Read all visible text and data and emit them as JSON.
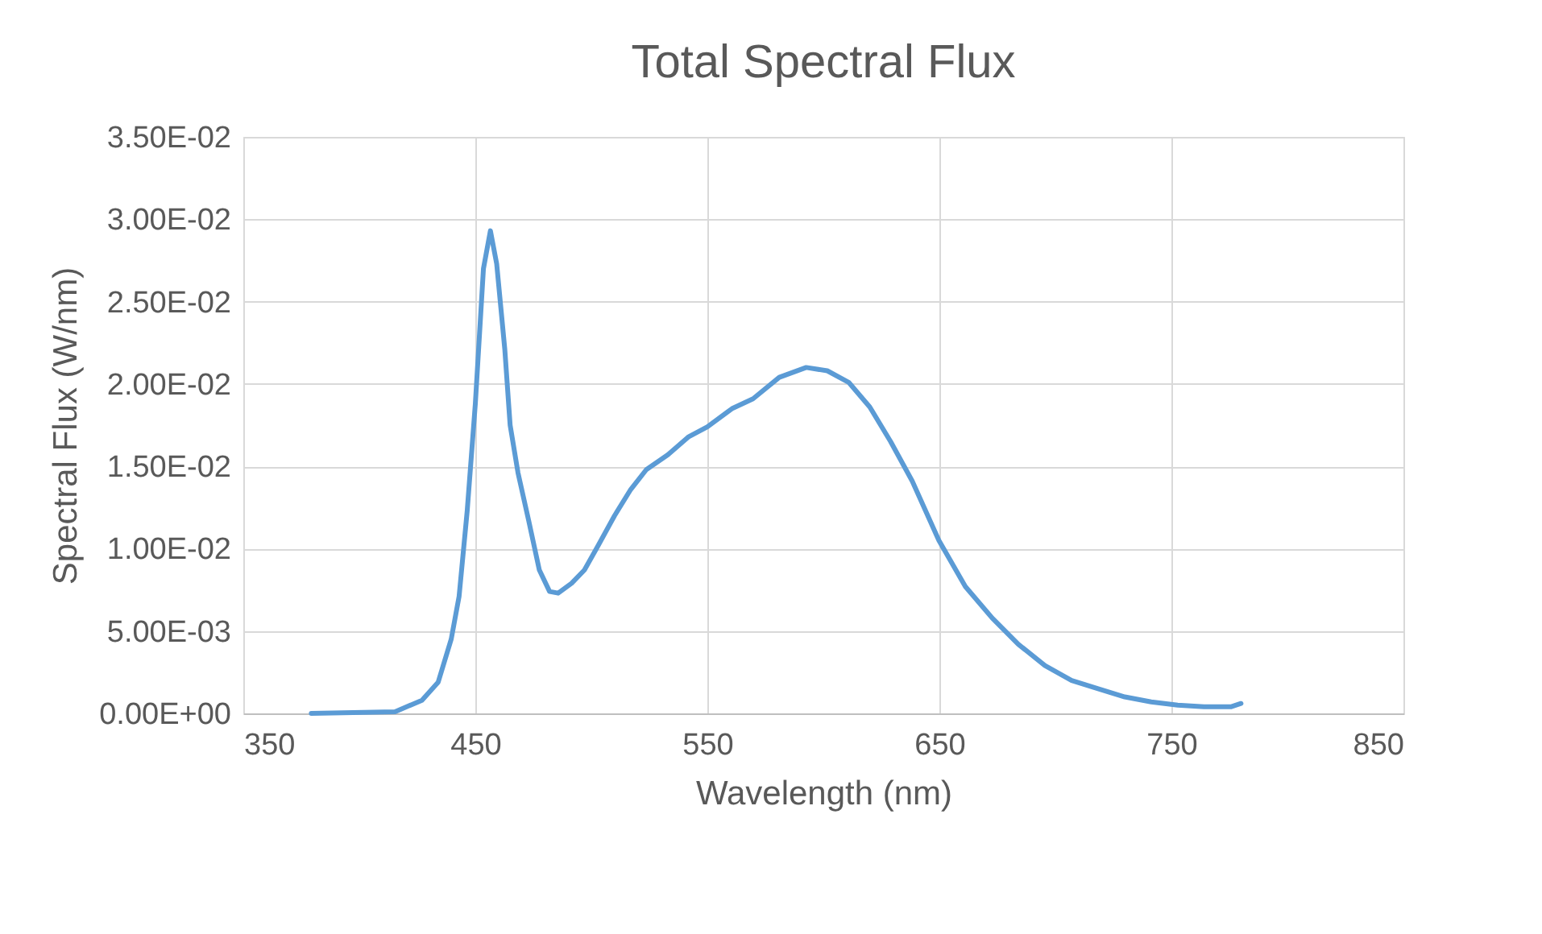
{
  "chart_data": {
    "type": "line",
    "title": "Total Spectral Flux",
    "xlabel": "Wavelength (nm)",
    "ylabel": "Spectral Flux (W/nm)",
    "xlim": [
      350,
      850
    ],
    "xticks": [
      350,
      450,
      550,
      650,
      750,
      850
    ],
    "ylim": [
      0,
      0.035
    ],
    "yticks": [
      {
        "value": 0,
        "label": "0.00E+00"
      },
      {
        "value": 0.005,
        "label": "5.00E-03"
      },
      {
        "value": 0.01,
        "label": "1.00E-02"
      },
      {
        "value": 0.015,
        "label": "1.50E-02"
      },
      {
        "value": 0.02,
        "label": "2.00E-02"
      },
      {
        "value": 0.025,
        "label": "2.50E-02"
      },
      {
        "value": 0.03,
        "label": "3.00E-02"
      },
      {
        "value": 0.035,
        "label": "3.50E-02"
      }
    ],
    "grid": true,
    "legend": false,
    "marker": "none",
    "line_style": "solid",
    "series": [
      {
        "color": "#5b9bd5",
        "x": [
          379.3,
          415.4,
          427,
          434,
          439.6,
          443,
          446.5,
          450,
          453.5,
          456.5,
          459.2,
          462.7,
          465,
          468.4,
          473,
          477.6,
          482,
          485.7,
          491.5,
          497,
          503,
          510,
          517,
          523.7,
          533,
          542,
          550,
          560.6,
          569.7,
          581,
          592.6,
          601.7,
          610.9,
          620,
          629,
          638.3,
          649.8,
          661.2,
          672.7,
          684,
          695.5,
          707,
          718.4,
          729.9,
          741.3,
          752.7,
          764,
          775.6,
          780
        ],
        "values": [
          0.0,
          0.0001,
          0.0008,
          0.0019,
          0.0045,
          0.0071,
          0.0123,
          0.0188,
          0.027,
          0.0293,
          0.0273,
          0.0221,
          0.0175,
          0.0146,
          0.0117,
          0.0087,
          0.0074,
          0.0073,
          0.0079,
          0.0087,
          0.0102,
          0.012,
          0.0136,
          0.0148,
          0.0157,
          0.0168,
          0.0174,
          0.0185,
          0.0191,
          0.0204,
          0.021,
          0.0208,
          0.0201,
          0.0186,
          0.0165,
          0.0141,
          0.0105,
          0.0077,
          0.0058,
          0.0042,
          0.0029,
          0.002,
          0.0015,
          0.001,
          0.0007,
          0.0005,
          0.0004,
          0.0004,
          0.0006
        ]
      }
    ]
  }
}
